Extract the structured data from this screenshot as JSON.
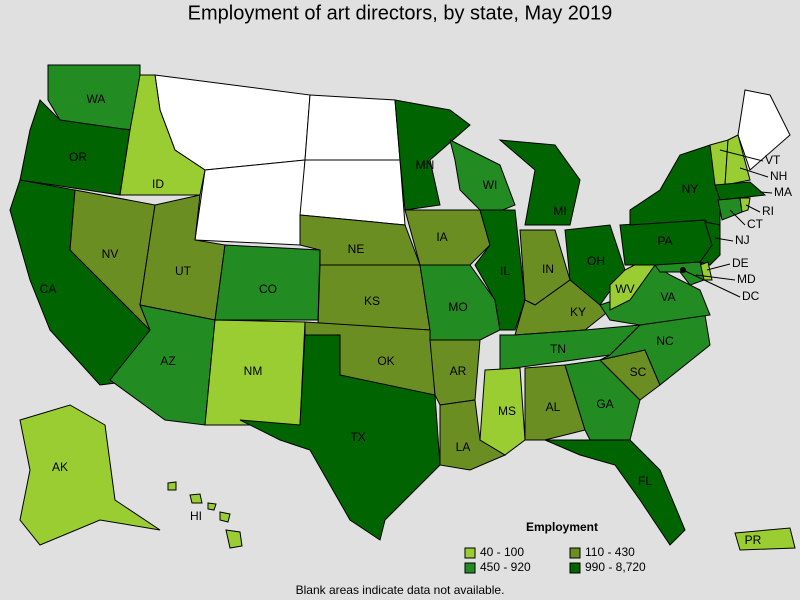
{
  "title": "Employment of art directors, by state, May 2019",
  "legend": {
    "title": "Employment",
    "items": [
      {
        "label": "40 - 100",
        "color": "#9acd32"
      },
      {
        "label": "110 - 430",
        "color": "#6b8e23"
      },
      {
        "label": "450 - 920",
        "color": "#228b22"
      },
      {
        "label": "990 - 8,720",
        "color": "#006400"
      }
    ]
  },
  "states": [
    {
      "label": "WA",
      "color": "#228b22"
    },
    {
      "label": "OR",
      "color": "#006400"
    },
    {
      "label": "CA",
      "color": "#006400"
    },
    {
      "label": "NV",
      "color": "#6b8e23"
    },
    {
      "label": "ID",
      "color": "#9acd32"
    },
    {
      "label": "UT",
      "color": "#6b8e23"
    },
    {
      "label": "AZ",
      "color": "#228b22"
    },
    {
      "label": "CO",
      "color": "#228b22"
    },
    {
      "label": "NM",
      "color": "#9acd32"
    },
    {
      "label": "NE",
      "color": "#6b8e23"
    },
    {
      "label": "KS",
      "color": "#6b8e23"
    },
    {
      "label": "OK",
      "color": "#6b8e23"
    },
    {
      "label": "TX",
      "color": "#006400"
    },
    {
      "label": "MN",
      "color": "#006400"
    },
    {
      "label": "IA",
      "color": "#6b8e23"
    },
    {
      "label": "MO",
      "color": "#228b22"
    },
    {
      "label": "AR",
      "color": "#6b8e23"
    },
    {
      "label": "LA",
      "color": "#6b8e23"
    },
    {
      "label": "WI",
      "color": "#228b22"
    },
    {
      "label": "IL",
      "color": "#006400"
    },
    {
      "label": "MI",
      "color": "#006400"
    },
    {
      "label": "IN",
      "color": "#6b8e23"
    },
    {
      "label": "OH",
      "color": "#006400"
    },
    {
      "label": "KY",
      "color": "#6b8e23"
    },
    {
      "label": "TN",
      "color": "#228b22"
    },
    {
      "label": "MS",
      "color": "#9acd32"
    },
    {
      "label": "AL",
      "color": "#6b8e23"
    },
    {
      "label": "GA",
      "color": "#228b22"
    },
    {
      "label": "FL",
      "color": "#006400"
    },
    {
      "label": "SC",
      "color": "#6b8e23"
    },
    {
      "label": "NC",
      "color": "#228b22"
    },
    {
      "label": "VA",
      "color": "#228b22"
    },
    {
      "label": "WV",
      "color": "#9acd32"
    },
    {
      "label": "PA",
      "color": "#006400"
    },
    {
      "label": "NY",
      "color": "#006400"
    },
    {
      "label": "VT",
      "color": "#9acd32"
    },
    {
      "label": "NH",
      "color": "#9acd32"
    },
    {
      "label": "MA",
      "color": "#006400"
    },
    {
      "label": "CT",
      "color": "#228b22"
    },
    {
      "label": "RI",
      "color": "#9acd32"
    },
    {
      "label": "NJ",
      "color": "#006400"
    },
    {
      "label": "DE",
      "color": "#9acd32"
    },
    {
      "label": "MD",
      "color": "#228b22"
    },
    {
      "label": "DC",
      "color": "#006400"
    },
    {
      "label": "AK",
      "color": "#9acd32"
    },
    {
      "label": "HI",
      "color": "#9acd32"
    },
    {
      "label": "PR",
      "color": "#9acd32"
    }
  ],
  "note": "Blank areas indicate data not available."
}
